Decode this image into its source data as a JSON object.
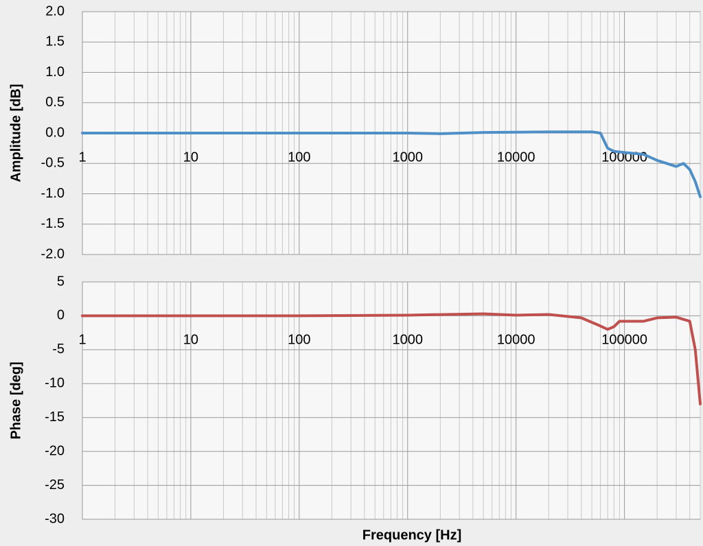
{
  "chart_data": [
    {
      "type": "line",
      "ylabel": "Amplitude [dB]",
      "log_x": true,
      "grid": true,
      "color": "#4f8fc7",
      "xlim": [
        1,
        500000
      ],
      "xticks": [
        1,
        10,
        100,
        1000,
        10000,
        100000
      ],
      "ylim": [
        -2,
        2
      ],
      "yticks": [
        {
          "value": 2,
          "label": "2.0"
        },
        1.5,
        {
          "value": 1,
          "label": "1.0"
        },
        0.5,
        {
          "value": 0,
          "label": "0.0"
        },
        -0.5,
        {
          "value": -1,
          "label": "-1.0"
        },
        -1.5,
        {
          "value": -2,
          "label": "-2.0"
        }
      ],
      "x": [
        1,
        10,
        100,
        1000,
        2000,
        5000,
        20000,
        50000,
        60000,
        70000,
        80000,
        100000,
        150000,
        200000,
        300000,
        350000,
        400000,
        450000,
        500000
      ],
      "values": [
        0,
        0,
        0,
        0,
        -0.01,
        0.01,
        0.02,
        0.02,
        0,
        -0.25,
        -0.3,
        -0.32,
        -0.35,
        -0.45,
        -0.55,
        -0.5,
        -0.6,
        -0.8,
        -1.05
      ]
    },
    {
      "type": "line",
      "ylabel": "Phase [deg]",
      "xlabel": "Frequency [Hz]",
      "log_x": true,
      "grid": true,
      "color": "#c0504d",
      "xlim": [
        1,
        500000
      ],
      "xticks": [
        1,
        10,
        100,
        1000,
        10000,
        100000
      ],
      "ylim": [
        -30,
        5
      ],
      "yticks": [
        5,
        0,
        -5,
        -10,
        -15,
        -20,
        -25,
        -30
      ],
      "x": [
        1,
        10,
        100,
        1000,
        5000,
        10000,
        20000,
        40000,
        60000,
        70000,
        80000,
        90000,
        150000,
        200000,
        300000,
        400000,
        450000,
        500000
      ],
      "values": [
        0,
        0,
        0,
        0.1,
        0.3,
        0.1,
        0.2,
        -0.3,
        -1.5,
        -2,
        -1.6,
        -0.8,
        -0.8,
        -0.3,
        -0.2,
        -0.8,
        -5,
        -13
      ]
    }
  ]
}
